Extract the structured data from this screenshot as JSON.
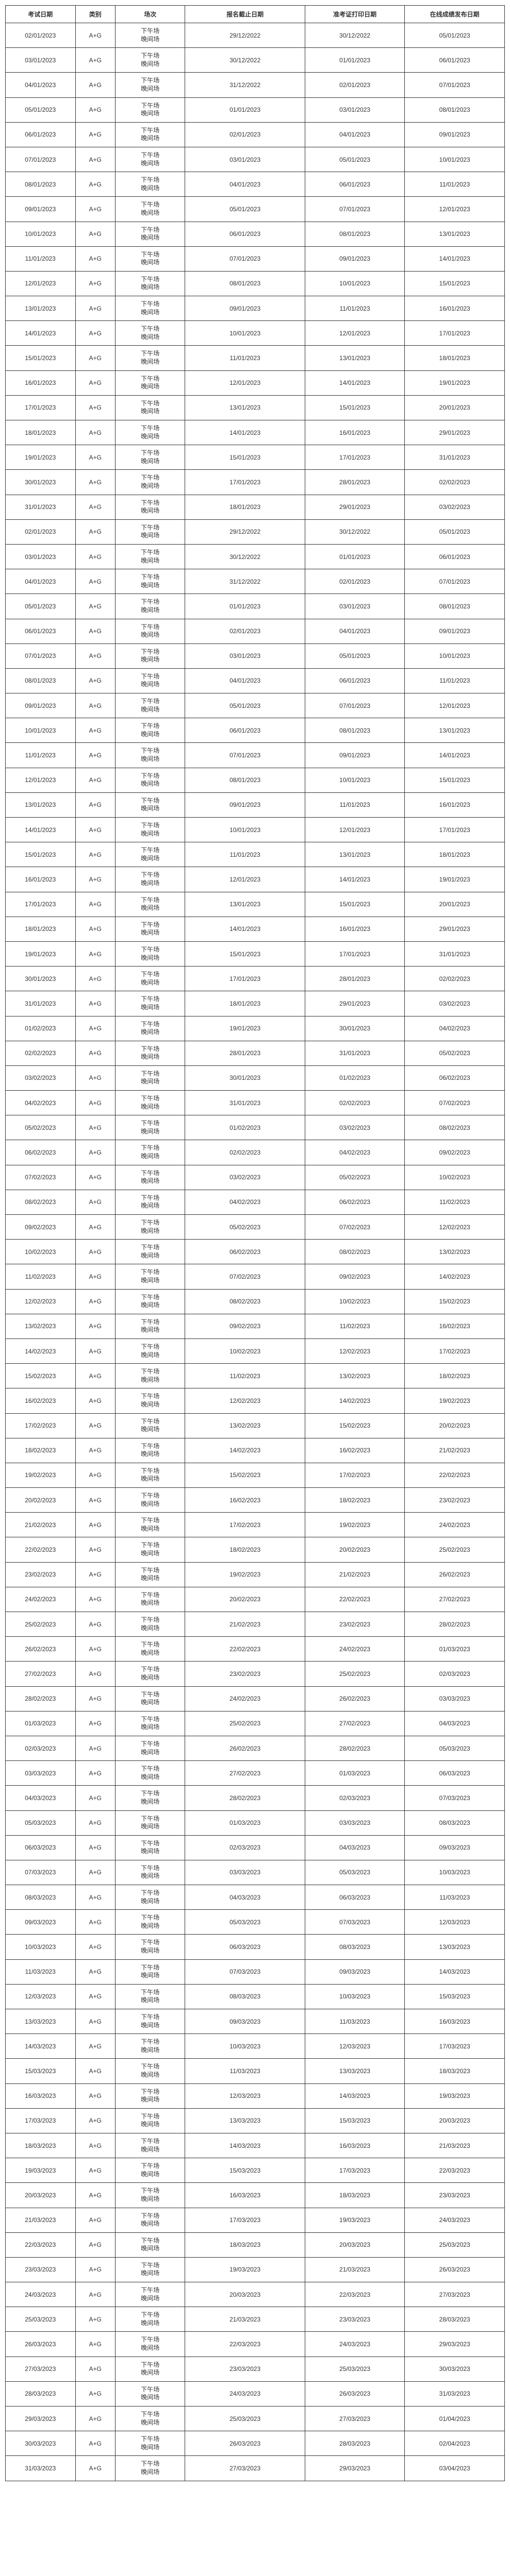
{
  "columns": {
    "exam_date": "考试日期",
    "category": "类别",
    "session": "场次",
    "reg_end": "报名截止日期",
    "ticket_date": "准考证打印日期",
    "result_date": "在线成绩发布日期"
  },
  "session_text": "下午场\n晚间场",
  "rows": [
    {
      "exam_date": "02/01/2023",
      "category": "A+G",
      "reg_end": "29/12/2022",
      "ticket_date": "30/12/2022",
      "result_date": "05/01/2023"
    },
    {
      "exam_date": "03/01/2023",
      "category": "A+G",
      "reg_end": "30/12/2022",
      "ticket_date": "01/01/2023",
      "result_date": "06/01/2023"
    },
    {
      "exam_date": "04/01/2023",
      "category": "A+G",
      "reg_end": "31/12/2022",
      "ticket_date": "02/01/2023",
      "result_date": "07/01/2023"
    },
    {
      "exam_date": "05/01/2023",
      "category": "A+G",
      "reg_end": "01/01/2023",
      "ticket_date": "03/01/2023",
      "result_date": "08/01/2023"
    },
    {
      "exam_date": "06/01/2023",
      "category": "A+G",
      "reg_end": "02/01/2023",
      "ticket_date": "04/01/2023",
      "result_date": "09/01/2023"
    },
    {
      "exam_date": "07/01/2023",
      "category": "A+G",
      "reg_end": "03/01/2023",
      "ticket_date": "05/01/2023",
      "result_date": "10/01/2023"
    },
    {
      "exam_date": "08/01/2023",
      "category": "A+G",
      "reg_end": "04/01/2023",
      "ticket_date": "06/01/2023",
      "result_date": "11/01/2023"
    },
    {
      "exam_date": "09/01/2023",
      "category": "A+G",
      "reg_end": "05/01/2023",
      "ticket_date": "07/01/2023",
      "result_date": "12/01/2023"
    },
    {
      "exam_date": "10/01/2023",
      "category": "A+G",
      "reg_end": "06/01/2023",
      "ticket_date": "08/01/2023",
      "result_date": "13/01/2023"
    },
    {
      "exam_date": "11/01/2023",
      "category": "A+G",
      "reg_end": "07/01/2023",
      "ticket_date": "09/01/2023",
      "result_date": "14/01/2023"
    },
    {
      "exam_date": "12/01/2023",
      "category": "A+G",
      "reg_end": "08/01/2023",
      "ticket_date": "10/01/2023",
      "result_date": "15/01/2023"
    },
    {
      "exam_date": "13/01/2023",
      "category": "A+G",
      "reg_end": "09/01/2023",
      "ticket_date": "11/01/2023",
      "result_date": "16/01/2023"
    },
    {
      "exam_date": "14/01/2023",
      "category": "A+G",
      "reg_end": "10/01/2023",
      "ticket_date": "12/01/2023",
      "result_date": "17/01/2023"
    },
    {
      "exam_date": "15/01/2023",
      "category": "A+G",
      "reg_end": "11/01/2023",
      "ticket_date": "13/01/2023",
      "result_date": "18/01/2023"
    },
    {
      "exam_date": "16/01/2023",
      "category": "A+G",
      "reg_end": "12/01/2023",
      "ticket_date": "14/01/2023",
      "result_date": "19/01/2023"
    },
    {
      "exam_date": "17/01/2023",
      "category": "A+G",
      "reg_end": "13/01/2023",
      "ticket_date": "15/01/2023",
      "result_date": "20/01/2023"
    },
    {
      "exam_date": "18/01/2023",
      "category": "A+G",
      "reg_end": "14/01/2023",
      "ticket_date": "16/01/2023",
      "result_date": "29/01/2023"
    },
    {
      "exam_date": "19/01/2023",
      "category": "A+G",
      "reg_end": "15/01/2023",
      "ticket_date": "17/01/2023",
      "result_date": "31/01/2023"
    },
    {
      "exam_date": "30/01/2023",
      "category": "A+G",
      "reg_end": "17/01/2023",
      "ticket_date": "28/01/2023",
      "result_date": "02/02/2023"
    },
    {
      "exam_date": "31/01/2023",
      "category": "A+G",
      "reg_end": "18/01/2023",
      "ticket_date": "29/01/2023",
      "result_date": "03/02/2023"
    },
    {
      "exam_date": "02/01/2023",
      "category": "A+G",
      "reg_end": "29/12/2022",
      "ticket_date": "30/12/2022",
      "result_date": "05/01/2023"
    },
    {
      "exam_date": "03/01/2023",
      "category": "A+G",
      "reg_end": "30/12/2022",
      "ticket_date": "01/01/2023",
      "result_date": "06/01/2023"
    },
    {
      "exam_date": "04/01/2023",
      "category": "A+G",
      "reg_end": "31/12/2022",
      "ticket_date": "02/01/2023",
      "result_date": "07/01/2023"
    },
    {
      "exam_date": "05/01/2023",
      "category": "A+G",
      "reg_end": "01/01/2023",
      "ticket_date": "03/01/2023",
      "result_date": "08/01/2023"
    },
    {
      "exam_date": "06/01/2023",
      "category": "A+G",
      "reg_end": "02/01/2023",
      "ticket_date": "04/01/2023",
      "result_date": "09/01/2023"
    },
    {
      "exam_date": "07/01/2023",
      "category": "A+G",
      "reg_end": "03/01/2023",
      "ticket_date": "05/01/2023",
      "result_date": "10/01/2023"
    },
    {
      "exam_date": "08/01/2023",
      "category": "A+G",
      "reg_end": "04/01/2023",
      "ticket_date": "06/01/2023",
      "result_date": "11/01/2023"
    },
    {
      "exam_date": "09/01/2023",
      "category": "A+G",
      "reg_end": "05/01/2023",
      "ticket_date": "07/01/2023",
      "result_date": "12/01/2023"
    },
    {
      "exam_date": "10/01/2023",
      "category": "A+G",
      "reg_end": "06/01/2023",
      "ticket_date": "08/01/2023",
      "result_date": "13/01/2023"
    },
    {
      "exam_date": "11/01/2023",
      "category": "A+G",
      "reg_end": "07/01/2023",
      "ticket_date": "09/01/2023",
      "result_date": "14/01/2023"
    },
    {
      "exam_date": "12/01/2023",
      "category": "A+G",
      "reg_end": "08/01/2023",
      "ticket_date": "10/01/2023",
      "result_date": "15/01/2023"
    },
    {
      "exam_date": "13/01/2023",
      "category": "A+G",
      "reg_end": "09/01/2023",
      "ticket_date": "11/01/2023",
      "result_date": "16/01/2023"
    },
    {
      "exam_date": "14/01/2023",
      "category": "A+G",
      "reg_end": "10/01/2023",
      "ticket_date": "12/01/2023",
      "result_date": "17/01/2023"
    },
    {
      "exam_date": "15/01/2023",
      "category": "A+G",
      "reg_end": "11/01/2023",
      "ticket_date": "13/01/2023",
      "result_date": "18/01/2023"
    },
    {
      "exam_date": "16/01/2023",
      "category": "A+G",
      "reg_end": "12/01/2023",
      "ticket_date": "14/01/2023",
      "result_date": "19/01/2023"
    },
    {
      "exam_date": "17/01/2023",
      "category": "A+G",
      "reg_end": "13/01/2023",
      "ticket_date": "15/01/2023",
      "result_date": "20/01/2023"
    },
    {
      "exam_date": "18/01/2023",
      "category": "A+G",
      "reg_end": "14/01/2023",
      "ticket_date": "16/01/2023",
      "result_date": "29/01/2023"
    },
    {
      "exam_date": "19/01/2023",
      "category": "A+G",
      "reg_end": "15/01/2023",
      "ticket_date": "17/01/2023",
      "result_date": "31/01/2023"
    },
    {
      "exam_date": "30/01/2023",
      "category": "A+G",
      "reg_end": "17/01/2023",
      "ticket_date": "28/01/2023",
      "result_date": "02/02/2023"
    },
    {
      "exam_date": "31/01/2023",
      "category": "A+G",
      "reg_end": "18/01/2023",
      "ticket_date": "29/01/2023",
      "result_date": "03/02/2023"
    },
    {
      "exam_date": "01/02/2023",
      "category": "A+G",
      "reg_end": "19/01/2023",
      "ticket_date": "30/01/2023",
      "result_date": "04/02/2023"
    },
    {
      "exam_date": "02/02/2023",
      "category": "A+G",
      "reg_end": "28/01/2023",
      "ticket_date": "31/01/2023",
      "result_date": "05/02/2023"
    },
    {
      "exam_date": "03/02/2023",
      "category": "A+G",
      "reg_end": "30/01/2023",
      "ticket_date": "01/02/2023",
      "result_date": "06/02/2023"
    },
    {
      "exam_date": "04/02/2023",
      "category": "A+G",
      "reg_end": "31/01/2023",
      "ticket_date": "02/02/2023",
      "result_date": "07/02/2023"
    },
    {
      "exam_date": "05/02/2023",
      "category": "A+G",
      "reg_end": "01/02/2023",
      "ticket_date": "03/02/2023",
      "result_date": "08/02/2023"
    },
    {
      "exam_date": "06/02/2023",
      "category": "A+G",
      "reg_end": "02/02/2023",
      "ticket_date": "04/02/2023",
      "result_date": "09/02/2023"
    },
    {
      "exam_date": "07/02/2023",
      "category": "A+G",
      "reg_end": "03/02/2023",
      "ticket_date": "05/02/2023",
      "result_date": "10/02/2023"
    },
    {
      "exam_date": "08/02/2023",
      "category": "A+G",
      "reg_end": "04/02/2023",
      "ticket_date": "06/02/2023",
      "result_date": "11/02/2023"
    },
    {
      "exam_date": "09/02/2023",
      "category": "A+G",
      "reg_end": "05/02/2023",
      "ticket_date": "07/02/2023",
      "result_date": "12/02/2023"
    },
    {
      "exam_date": "10/02/2023",
      "category": "A+G",
      "reg_end": "06/02/2023",
      "ticket_date": "08/02/2023",
      "result_date": "13/02/2023"
    },
    {
      "exam_date": "11/02/2023",
      "category": "A+G",
      "reg_end": "07/02/2023",
      "ticket_date": "09/02/2023",
      "result_date": "14/02/2023"
    },
    {
      "exam_date": "12/02/2023",
      "category": "A+G",
      "reg_end": "08/02/2023",
      "ticket_date": "10/02/2023",
      "result_date": "15/02/2023"
    },
    {
      "exam_date": "13/02/2023",
      "category": "A+G",
      "reg_end": "09/02/2023",
      "ticket_date": "11/02/2023",
      "result_date": "16/02/2023"
    },
    {
      "exam_date": "14/02/2023",
      "category": "A+G",
      "reg_end": "10/02/2023",
      "ticket_date": "12/02/2023",
      "result_date": "17/02/2023"
    },
    {
      "exam_date": "15/02/2023",
      "category": "A+G",
      "reg_end": "11/02/2023",
      "ticket_date": "13/02/2023",
      "result_date": "18/02/2023"
    },
    {
      "exam_date": "16/02/2023",
      "category": "A+G",
      "reg_end": "12/02/2023",
      "ticket_date": "14/02/2023",
      "result_date": "19/02/2023"
    },
    {
      "exam_date": "17/02/2023",
      "category": "A+G",
      "reg_end": "13/02/2023",
      "ticket_date": "15/02/2023",
      "result_date": "20/02/2023"
    },
    {
      "exam_date": "18/02/2023",
      "category": "A+G",
      "reg_end": "14/02/2023",
      "ticket_date": "16/02/2023",
      "result_date": "21/02/2023"
    },
    {
      "exam_date": "19/02/2023",
      "category": "A+G",
      "reg_end": "15/02/2023",
      "ticket_date": "17/02/2023",
      "result_date": "22/02/2023"
    },
    {
      "exam_date": "20/02/2023",
      "category": "A+G",
      "reg_end": "16/02/2023",
      "ticket_date": "18/02/2023",
      "result_date": "23/02/2023"
    },
    {
      "exam_date": "21/02/2023",
      "category": "A+G",
      "reg_end": "17/02/2023",
      "ticket_date": "19/02/2023",
      "result_date": "24/02/2023"
    },
    {
      "exam_date": "22/02/2023",
      "category": "A+G",
      "reg_end": "18/02/2023",
      "ticket_date": "20/02/2023",
      "result_date": "25/02/2023"
    },
    {
      "exam_date": "23/02/2023",
      "category": "A+G",
      "reg_end": "19/02/2023",
      "ticket_date": "21/02/2023",
      "result_date": "26/02/2023"
    },
    {
      "exam_date": "24/02/2023",
      "category": "A+G",
      "reg_end": "20/02/2023",
      "ticket_date": "22/02/2023",
      "result_date": "27/02/2023"
    },
    {
      "exam_date": "25/02/2023",
      "category": "A+G",
      "reg_end": "21/02/2023",
      "ticket_date": "23/02/2023",
      "result_date": "28/02/2023"
    },
    {
      "exam_date": "26/02/2023",
      "category": "A+G",
      "reg_end": "22/02/2023",
      "ticket_date": "24/02/2023",
      "result_date": "01/03/2023"
    },
    {
      "exam_date": "27/02/2023",
      "category": "A+G",
      "reg_end": "23/02/2023",
      "ticket_date": "25/02/2023",
      "result_date": "02/03/2023"
    },
    {
      "exam_date": "28/02/2023",
      "category": "A+G",
      "reg_end": "24/02/2023",
      "ticket_date": "26/02/2023",
      "result_date": "03/03/2023"
    },
    {
      "exam_date": "01/03/2023",
      "category": "A+G",
      "reg_end": "25/02/2023",
      "ticket_date": "27/02/2023",
      "result_date": "04/03/2023"
    },
    {
      "exam_date": "02/03/2023",
      "category": "A+G",
      "reg_end": "26/02/2023",
      "ticket_date": "28/02/2023",
      "result_date": "05/03/2023"
    },
    {
      "exam_date": "03/03/2023",
      "category": "A+G",
      "reg_end": "27/02/2023",
      "ticket_date": "01/03/2023",
      "result_date": "06/03/2023"
    },
    {
      "exam_date": "04/03/2023",
      "category": "A+G",
      "reg_end": "28/02/2023",
      "ticket_date": "02/03/2023",
      "result_date": "07/03/2023"
    },
    {
      "exam_date": "05/03/2023",
      "category": "A+G",
      "reg_end": "01/03/2023",
      "ticket_date": "03/03/2023",
      "result_date": "08/03/2023"
    },
    {
      "exam_date": "06/03/2023",
      "category": "A+G",
      "reg_end": "02/03/2023",
      "ticket_date": "04/03/2023",
      "result_date": "09/03/2023"
    },
    {
      "exam_date": "07/03/2023",
      "category": "A+G",
      "reg_end": "03/03/2023",
      "ticket_date": "05/03/2023",
      "result_date": "10/03/2023"
    },
    {
      "exam_date": "08/03/2023",
      "category": "A+G",
      "reg_end": "04/03/2023",
      "ticket_date": "06/03/2023",
      "result_date": "11/03/2023"
    },
    {
      "exam_date": "09/03/2023",
      "category": "A+G",
      "reg_end": "05/03/2023",
      "ticket_date": "07/03/2023",
      "result_date": "12/03/2023"
    },
    {
      "exam_date": "10/03/2023",
      "category": "A+G",
      "reg_end": "06/03/2023",
      "ticket_date": "08/03/2023",
      "result_date": "13/03/2023"
    },
    {
      "exam_date": "11/03/2023",
      "category": "A+G",
      "reg_end": "07/03/2023",
      "ticket_date": "09/03/2023",
      "result_date": "14/03/2023"
    },
    {
      "exam_date": "12/03/2023",
      "category": "A+G",
      "reg_end": "08/03/2023",
      "ticket_date": "10/03/2023",
      "result_date": "15/03/2023"
    },
    {
      "exam_date": "13/03/2023",
      "category": "A+G",
      "reg_end": "09/03/2023",
      "ticket_date": "11/03/2023",
      "result_date": "16/03/2023"
    },
    {
      "exam_date": "14/03/2023",
      "category": "A+G",
      "reg_end": "10/03/2023",
      "ticket_date": "12/03/2023",
      "result_date": "17/03/2023"
    },
    {
      "exam_date": "15/03/2023",
      "category": "A+G",
      "reg_end": "11/03/2023",
      "ticket_date": "13/03/2023",
      "result_date": "18/03/2023"
    },
    {
      "exam_date": "16/03/2023",
      "category": "A+G",
      "reg_end": "12/03/2023",
      "ticket_date": "14/03/2023",
      "result_date": "19/03/2023"
    },
    {
      "exam_date": "17/03/2023",
      "category": "A+G",
      "reg_end": "13/03/2023",
      "ticket_date": "15/03/2023",
      "result_date": "20/03/2023"
    },
    {
      "exam_date": "18/03/2023",
      "category": "A+G",
      "reg_end": "14/03/2023",
      "ticket_date": "16/03/2023",
      "result_date": "21/03/2023"
    },
    {
      "exam_date": "19/03/2023",
      "category": "A+G",
      "reg_end": "15/03/2023",
      "ticket_date": "17/03/2023",
      "result_date": "22/03/2023"
    },
    {
      "exam_date": "20/03/2023",
      "category": "A+G",
      "reg_end": "16/03/2023",
      "ticket_date": "18/03/2023",
      "result_date": "23/03/2023"
    },
    {
      "exam_date": "21/03/2023",
      "category": "A+G",
      "reg_end": "17/03/2023",
      "ticket_date": "19/03/2023",
      "result_date": "24/03/2023"
    },
    {
      "exam_date": "22/03/2023",
      "category": "A+G",
      "reg_end": "18/03/2023",
      "ticket_date": "20/03/2023",
      "result_date": "25/03/2023"
    },
    {
      "exam_date": "23/03/2023",
      "category": "A+G",
      "reg_end": "19/03/2023",
      "ticket_date": "21/03/2023",
      "result_date": "26/03/2023"
    },
    {
      "exam_date": "24/03/2023",
      "category": "A+G",
      "reg_end": "20/03/2023",
      "ticket_date": "22/03/2023",
      "result_date": "27/03/2023"
    },
    {
      "exam_date": "25/03/2023",
      "category": "A+G",
      "reg_end": "21/03/2023",
      "ticket_date": "23/03/2023",
      "result_date": "28/03/2023"
    },
    {
      "exam_date": "26/03/2023",
      "category": "A+G",
      "reg_end": "22/03/2023",
      "ticket_date": "24/03/2023",
      "result_date": "29/03/2023"
    },
    {
      "exam_date": "27/03/2023",
      "category": "A+G",
      "reg_end": "23/03/2023",
      "ticket_date": "25/03/2023",
      "result_date": "30/03/2023"
    },
    {
      "exam_date": "28/03/2023",
      "category": "A+G",
      "reg_end": "24/03/2023",
      "ticket_date": "26/03/2023",
      "result_date": "31/03/2023"
    },
    {
      "exam_date": "29/03/2023",
      "category": "A+G",
      "reg_end": "25/03/2023",
      "ticket_date": "27/03/2023",
      "result_date": "01/04/2023"
    },
    {
      "exam_date": "30/03/2023",
      "category": "A+G",
      "reg_end": "26/03/2023",
      "ticket_date": "28/03/2023",
      "result_date": "02/04/2023"
    },
    {
      "exam_date": "31/03/2023",
      "category": "A+G",
      "reg_end": "27/03/2023",
      "ticket_date": "29/03/2023",
      "result_date": "03/04/2023"
    }
  ]
}
